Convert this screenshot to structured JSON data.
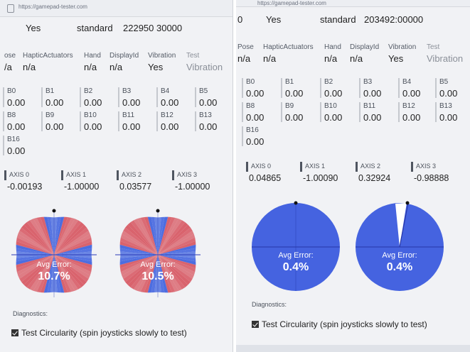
{
  "left": {
    "url": "https://gamepad-tester.com",
    "connected": "Yes",
    "mapping": "standard",
    "timestamp": "222950 30000",
    "caps": [
      {
        "label": "ose",
        "value": "/a"
      },
      {
        "label": "HapticActuators",
        "value": "n/a"
      },
      {
        "label": "Hand",
        "value": "n/a"
      },
      {
        "label": "DisplayId",
        "value": "n/a"
      },
      {
        "label": "Vibration",
        "value": "Yes"
      },
      {
        "label": "Test",
        "value": "Vibration"
      }
    ],
    "buttons": [
      {
        "name": "B0",
        "value": "0.00"
      },
      {
        "name": "B1",
        "value": "0.00"
      },
      {
        "name": "B2",
        "value": "0.00"
      },
      {
        "name": "B3",
        "value": "0.00"
      },
      {
        "name": "B4",
        "value": "0.00"
      },
      {
        "name": "B5",
        "value": "0.00"
      },
      {
        "name": "B8",
        "value": "0.00"
      },
      {
        "name": "B9",
        "value": "0.00"
      },
      {
        "name": "B10",
        "value": "0.00"
      },
      {
        "name": "B11",
        "value": "0.00"
      },
      {
        "name": "B12",
        "value": "0.00"
      },
      {
        "name": "B13",
        "value": "0.00"
      },
      {
        "name": "B16",
        "value": "0.00"
      }
    ],
    "axes": [
      {
        "name": "AXIS 0",
        "value": "-0.00193"
      },
      {
        "name": "AXIS 1",
        "value": "-1.00000"
      },
      {
        "name": "AXIS 2",
        "value": "0.03577"
      },
      {
        "name": "AXIS 3",
        "value": "-1.00000"
      }
    ],
    "circles": [
      {
        "label": "Avg Error:",
        "value": "10.7%"
      },
      {
        "label": "Avg Error:",
        "value": "10.5%"
      }
    ],
    "diagnostics": "Diagnostics:",
    "circularity_bold": "Test Circularity",
    "circularity_rest": " (spin joysticks slowly to test)"
  },
  "right": {
    "url": "https://gamepad-tester.com",
    "id_prefix": "0",
    "connected": "Yes",
    "mapping": "standard",
    "timestamp": "203492:00000",
    "caps": [
      {
        "label": "Pose",
        "value": "n/a"
      },
      {
        "label": "HapticActuators",
        "value": "n/a"
      },
      {
        "label": "Hand",
        "value": "n/a"
      },
      {
        "label": "DisplayId",
        "value": "n/a"
      },
      {
        "label": "Vibration",
        "value": "Yes"
      },
      {
        "label": "Test",
        "value": "Vibration"
      }
    ],
    "buttons": [
      {
        "name": "B0",
        "value": "0.00"
      },
      {
        "name": "B1",
        "value": "0.00"
      },
      {
        "name": "B2",
        "value": "0.00"
      },
      {
        "name": "B3",
        "value": "0.00"
      },
      {
        "name": "B4",
        "value": "0.00"
      },
      {
        "name": "B5",
        "value": "0.00"
      },
      {
        "name": "B8",
        "value": "0.00"
      },
      {
        "name": "B9",
        "value": "0.00"
      },
      {
        "name": "B10",
        "value": "0.00"
      },
      {
        "name": "B11",
        "value": "0.00"
      },
      {
        "name": "B12",
        "value": "0.00"
      },
      {
        "name": "B13",
        "value": "0.00"
      },
      {
        "name": "B16",
        "value": "0.00"
      }
    ],
    "axes": [
      {
        "name": "AXIS 0",
        "value": "0.04865"
      },
      {
        "name": "AXIS 1",
        "value": "-1.00090"
      },
      {
        "name": "AXIS 2",
        "value": "0.32924"
      },
      {
        "name": "AXIS 3",
        "value": "-0.98888"
      }
    ],
    "circles": [
      {
        "label": "Avg Error:",
        "value": "0.4%"
      },
      {
        "label": "Avg Error:",
        "value": "0.4%"
      }
    ],
    "diagnostics": "Diagnostics:",
    "circularity_bold": "Test Circularity",
    "circularity_rest": " (spin joysticks slowly to test)"
  },
  "colors": {
    "blue": "#4a6be0",
    "red": "#d9616b",
    "accent": "#2f6fd6"
  }
}
